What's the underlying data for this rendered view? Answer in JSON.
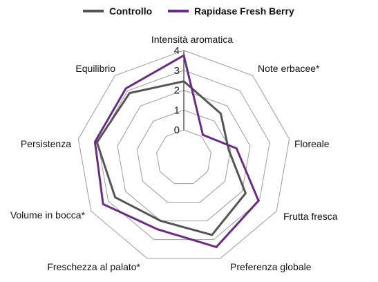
{
  "chart_data": {
    "type": "radar",
    "categories": [
      "Intensità aromatica",
      "Note erbacee*",
      "Floreale",
      "Frutta fresca",
      "Preferenza globale",
      "Freschezza al palato*",
      "Volume in bocca*",
      "Persistenza",
      "Equilibrio"
    ],
    "rlim": [
      0,
      4
    ],
    "ticks": [
      "0",
      "1",
      "2",
      "3",
      "4"
    ],
    "grid": true,
    "legend_position": "top",
    "series": [
      {
        "name": "Controllo",
        "color": "#545454",
        "values": [
          2.45,
          1.5,
          0.9,
          2.2,
          2.75,
          2.0,
          2.6,
          3.05,
          2.85
        ]
      },
      {
        "name": "Rapidase Fresh Berry",
        "color": "#6a2c83",
        "values": [
          3.75,
          0.1,
          1.3,
          2.95,
          3.4,
          2.45,
          3.3,
          3.15,
          3.15
        ]
      }
    ]
  }
}
